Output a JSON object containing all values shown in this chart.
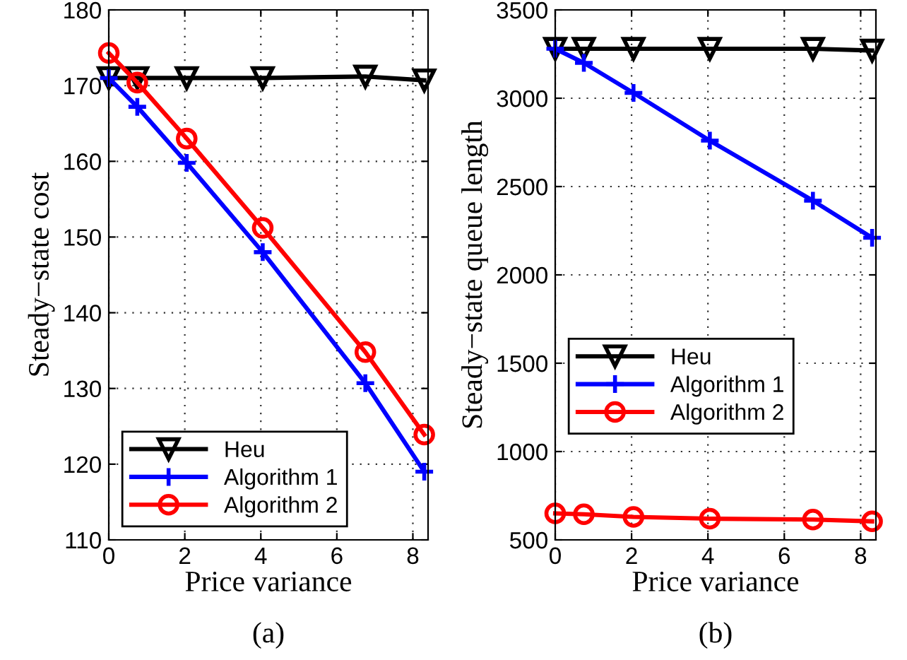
{
  "chart_data": [
    {
      "type": "line",
      "xlabel": "Price variance",
      "ylabel": "Steady−state cost",
      "annotations": [
        "(a)"
      ],
      "x": [
        0,
        0.75,
        2.05,
        4.05,
        6.75,
        8.3
      ],
      "xlim": [
        0,
        8.4
      ],
      "xticks": [
        0,
        2,
        4,
        6,
        8
      ],
      "ylim": [
        110,
        180
      ],
      "yticks": [
        110,
        120,
        130,
        140,
        150,
        160,
        170,
        180
      ],
      "grid": true,
      "legend": "bottom left",
      "series": [
        {
          "name": "Heu",
          "color": "#000000",
          "marker": "triangle",
          "values": [
            171,
            171,
            171,
            171,
            171.2,
            170.7
          ]
        },
        {
          "name": "Algorithm 1",
          "color": "#0000ff",
          "marker": "cross",
          "values": [
            171,
            167.2,
            159.8,
            148,
            130.7,
            119
          ]
        },
        {
          "name": "Algorithm 2",
          "color": "#ff0000",
          "marker": "circle",
          "values": [
            174.3,
            170.4,
            163,
            151.2,
            134.8,
            123.9
          ]
        }
      ]
    },
    {
      "type": "line",
      "xlabel": "Price variance",
      "ylabel": "Steady−state queue length",
      "annotations": [
        "(b)"
      ],
      "x": [
        0,
        0.75,
        2.05,
        4.05,
        6.75,
        8.3
      ],
      "xlim": [
        0,
        8.4
      ],
      "xticks": [
        0,
        2,
        4,
        6,
        8
      ],
      "ylim": [
        500,
        3500
      ],
      "yticks": [
        500,
        1000,
        1500,
        2000,
        2500,
        3000,
        3500
      ],
      "grid": true,
      "legend": "left",
      "series": [
        {
          "name": "Heu",
          "color": "#000000",
          "marker": "triangle",
          "values": [
            3280,
            3280,
            3280,
            3280,
            3280,
            3270
          ]
        },
        {
          "name": "Algorithm 1",
          "color": "#0000ff",
          "marker": "cross",
          "values": [
            3280,
            3200,
            3030,
            2760,
            2420,
            2210
          ]
        },
        {
          "name": "Algorithm 2",
          "color": "#ff0000",
          "marker": "circle",
          "values": [
            650,
            645,
            630,
            620,
            615,
            605
          ]
        }
      ]
    }
  ]
}
